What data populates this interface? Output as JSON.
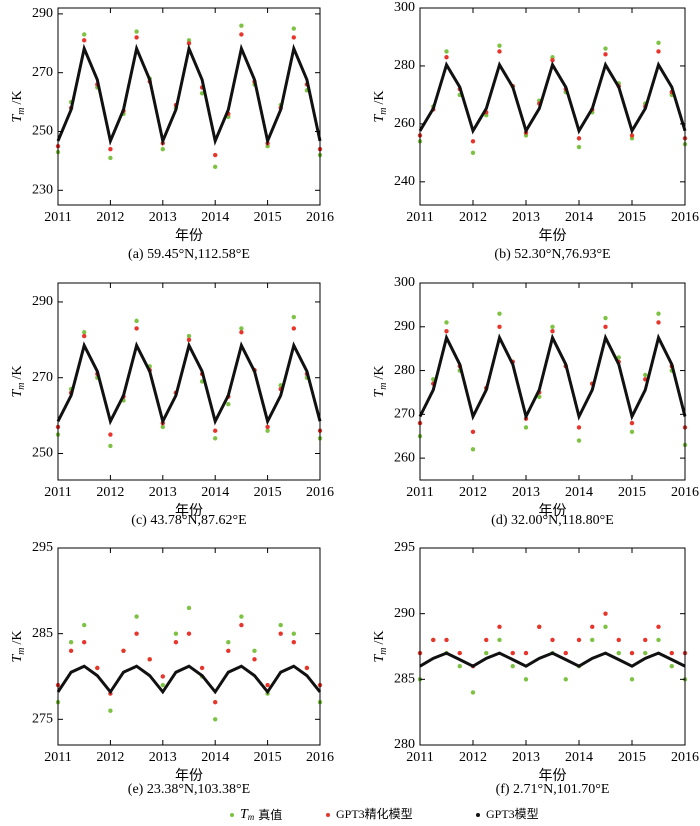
{
  "chart_data": [
    {
      "type": "scatter",
      "caption": "(a) 59.45°N,112.58°E",
      "x_label": "年份",
      "y_label_symbol": "T",
      "y_label_sub": "m",
      "y_label_unit": "/K",
      "x": [
        2011,
        2011.25,
        2011.5,
        2011.75,
        2012,
        2012.25,
        2012.5,
        2012.75,
        2013,
        2013.25,
        2013.5,
        2013.75,
        2014,
        2014.25,
        2014.5,
        2014.75,
        2015,
        2015.25,
        2015.5,
        2015.75,
        2016
      ],
      "xlim": [
        2011,
        2016
      ],
      "xticks": [
        2011,
        2012,
        2013,
        2014,
        2015,
        2016
      ],
      "ylim": [
        225,
        292
      ],
      "yticks": [
        230,
        250,
        270,
        290
      ],
      "series": [
        {
          "name": "真值",
          "name_symbol": "T",
          "name_sub": "m",
          "color": "#7dc242",
          "mode": "markers",
          "values": [
            243,
            260,
            283,
            265,
            241,
            256,
            284,
            268,
            244,
            258,
            281,
            263,
            238,
            255,
            286,
            266,
            245,
            259,
            285,
            264,
            242
          ]
        },
        {
          "name": "GPT3精化模型",
          "color": "#e8352b",
          "mode": "markers",
          "values": [
            245,
            258,
            281,
            266,
            244,
            257,
            282,
            267,
            246,
            259,
            280,
            265,
            242,
            256,
            283,
            267,
            246,
            258,
            282,
            266,
            244
          ]
        },
        {
          "name": "GPT3模型",
          "color": "#111111",
          "mode": "line",
          "values": [
            246.8,
            257.4,
            278.2,
            267.6,
            246.8,
            257.4,
            278.2,
            267.6,
            246.8,
            257.4,
            278.2,
            267.6,
            246.8,
            257.4,
            278.2,
            267.6,
            246.8,
            257.4,
            278.2,
            267.6,
            246.8
          ]
        }
      ]
    },
    {
      "type": "scatter",
      "caption": "(b) 52.30°N,76.93°E",
      "x_label": "年份",
      "y_label_symbol": "T",
      "y_label_sub": "m",
      "y_label_unit": "/K",
      "x": [
        2011,
        2011.25,
        2011.5,
        2011.75,
        2012,
        2012.25,
        2012.5,
        2012.75,
        2013,
        2013.25,
        2013.5,
        2013.75,
        2014,
        2014.25,
        2014.5,
        2014.75,
        2015,
        2015.25,
        2015.5,
        2015.75,
        2016
      ],
      "xlim": [
        2011,
        2016
      ],
      "xticks": [
        2011,
        2012,
        2013,
        2014,
        2015,
        2016
      ],
      "ylim": [
        232,
        300
      ],
      "yticks": [
        240,
        260,
        280,
        300
      ],
      "series": [
        {
          "name": "真值",
          "name_symbol": "T",
          "name_sub": "m",
          "color": "#7dc242",
          "mode": "markers",
          "values": [
            254,
            266,
            285,
            270,
            250,
            263,
            287,
            273,
            256,
            268,
            283,
            271,
            252,
            264,
            286,
            274,
            255,
            267,
            288,
            270,
            253
          ]
        },
        {
          "name": "GPT3精化模型",
          "color": "#e8352b",
          "mode": "markers",
          "values": [
            256,
            265,
            283,
            272,
            254,
            264,
            285,
            273,
            257,
            267,
            282,
            272,
            255,
            265,
            284,
            273,
            256,
            266,
            285,
            271,
            255
          ]
        },
        {
          "name": "GPT3模型",
          "color": "#111111",
          "mode": "line",
          "values": [
            257.6,
            265.3,
            280.4,
            272.7,
            257.6,
            265.3,
            280.4,
            272.7,
            257.6,
            265.3,
            280.4,
            272.7,
            257.6,
            265.3,
            280.4,
            272.7,
            257.6,
            265.3,
            280.4,
            272.7,
            257.6
          ]
        }
      ]
    },
    {
      "type": "scatter",
      "caption": "(c) 43.78°N,87.62°E",
      "x_label": "年份",
      "y_label_symbol": "T",
      "y_label_sub": "m",
      "y_label_unit": "/K",
      "x": [
        2011,
        2011.25,
        2011.5,
        2011.75,
        2012,
        2012.25,
        2012.5,
        2012.75,
        2013,
        2013.25,
        2013.5,
        2013.75,
        2014,
        2014.25,
        2014.5,
        2014.75,
        2015,
        2015.25,
        2015.5,
        2015.75,
        2016
      ],
      "xlim": [
        2011,
        2016
      ],
      "xticks": [
        2011,
        2012,
        2013,
        2014,
        2015,
        2016
      ],
      "ylim": [
        243,
        295
      ],
      "yticks": [
        250,
        270,
        290
      ],
      "series": [
        {
          "name": "真值",
          "name_symbol": "T",
          "name_sub": "m",
          "color": "#7dc242",
          "mode": "markers",
          "values": [
            255,
            267,
            282,
            270,
            252,
            264,
            285,
            273,
            257,
            266,
            281,
            269,
            254,
            263,
            283,
            272,
            256,
            268,
            286,
            270,
            254
          ]
        },
        {
          "name": "GPT3精化模型",
          "color": "#e8352b",
          "mode": "markers",
          "values": [
            257,
            266,
            281,
            271,
            255,
            265,
            283,
            272,
            258,
            266,
            280,
            271,
            256,
            265,
            282,
            272,
            257,
            267,
            283,
            271,
            256
          ]
        },
        {
          "name": "GPT3模型",
          "color": "#111111",
          "mode": "line",
          "values": [
            258.5,
            265.3,
            278.5,
            271.7,
            258.5,
            265.3,
            278.5,
            271.7,
            258.5,
            265.3,
            278.5,
            271.7,
            258.5,
            265.3,
            278.5,
            271.7,
            258.5,
            265.3,
            278.5,
            271.7,
            258.5
          ]
        }
      ]
    },
    {
      "type": "scatter",
      "caption": "(d) 32.00°N,118.80°E",
      "x_label": "年份",
      "y_label_symbol": "T",
      "y_label_sub": "m",
      "y_label_unit": "/K",
      "x": [
        2011,
        2011.25,
        2011.5,
        2011.75,
        2012,
        2012.25,
        2012.5,
        2012.75,
        2013,
        2013.25,
        2013.5,
        2013.75,
        2014,
        2014.25,
        2014.5,
        2014.75,
        2015,
        2015.25,
        2015.5,
        2015.75,
        2016
      ],
      "xlim": [
        2011,
        2016
      ],
      "xticks": [
        2011,
        2012,
        2013,
        2014,
        2015,
        2016
      ],
      "ylim": [
        255,
        300
      ],
      "yticks": [
        260,
        270,
        280,
        290,
        300
      ],
      "series": [
        {
          "name": "真值",
          "name_symbol": "T",
          "name_sub": "m",
          "color": "#7dc242",
          "mode": "markers",
          "values": [
            265,
            278,
            291,
            280,
            262,
            276,
            293,
            282,
            267,
            274,
            290,
            281,
            264,
            277,
            292,
            283,
            266,
            279,
            293,
            280,
            263
          ]
        },
        {
          "name": "GPT3精化模型",
          "color": "#e8352b",
          "mode": "markers",
          "values": [
            268,
            277,
            289,
            281,
            266,
            276,
            290,
            282,
            269,
            275,
            289,
            281,
            267,
            277,
            290,
            282,
            268,
            278,
            291,
            281,
            267
          ]
        },
        {
          "name": "GPT3模型",
          "color": "#111111",
          "mode": "line",
          "values": [
            269.5,
            275.6,
            287.5,
            281.4,
            269.5,
            275.6,
            287.5,
            281.4,
            269.5,
            275.6,
            287.5,
            281.4,
            269.5,
            275.6,
            287.5,
            281.4,
            269.5,
            275.6,
            287.5,
            281.4,
            269.5
          ]
        }
      ]
    },
    {
      "type": "scatter",
      "caption": "(e) 23.38°N,103.38°E",
      "x_label": "年份",
      "y_label_symbol": "T",
      "y_label_sub": "m",
      "y_label_unit": "/K",
      "x": [
        2011,
        2011.25,
        2011.5,
        2011.75,
        2012,
        2012.25,
        2012.5,
        2012.75,
        2013,
        2013.25,
        2013.5,
        2013.75,
        2014,
        2014.25,
        2014.5,
        2014.75,
        2015,
        2015.25,
        2015.5,
        2015.75,
        2016
      ],
      "xlim": [
        2011,
        2016
      ],
      "xticks": [
        2011,
        2012,
        2013,
        2014,
        2015,
        2016
      ],
      "ylim": [
        272,
        295
      ],
      "yticks": [
        275,
        285,
        295
      ],
      "series": [
        {
          "name": "真值",
          "name_symbol": "T",
          "name_sub": "m",
          "color": "#7dc242",
          "mode": "markers",
          "values": [
            277,
            284,
            286,
            281,
            276,
            283,
            287,
            282,
            279,
            285,
            288,
            280,
            275,
            284,
            287,
            283,
            278,
            286,
            285,
            281,
            277
          ]
        },
        {
          "name": "GPT3精化模型",
          "color": "#e8352b",
          "mode": "markers",
          "values": [
            279,
            283,
            284,
            281,
            278,
            283,
            285,
            282,
            280,
            284,
            285,
            281,
            277,
            283,
            286,
            282,
            279,
            285,
            284,
            281,
            279
          ]
        },
        {
          "name": "GPT3模型",
          "color": "#111111",
          "mode": "line",
          "values": [
            278.2,
            280.5,
            281.2,
            280.1,
            278.2,
            280.5,
            281.2,
            280.1,
            278.2,
            280.5,
            281.2,
            280.1,
            278.2,
            280.5,
            281.2,
            280.1,
            278.2,
            280.5,
            281.2,
            280.1,
            278.2
          ]
        }
      ]
    },
    {
      "type": "scatter",
      "caption": "(f) 2.71°N,101.70°E",
      "x_label": "年份",
      "y_label_symbol": "T",
      "y_label_sub": "m",
      "y_label_unit": "/K",
      "x": [
        2011,
        2011.25,
        2011.5,
        2011.75,
        2012,
        2012.25,
        2012.5,
        2012.75,
        2013,
        2013.25,
        2013.5,
        2013.75,
        2014,
        2014.25,
        2014.5,
        2014.75,
        2015,
        2015.25,
        2015.5,
        2015.75,
        2016
      ],
      "xlim": [
        2011,
        2016
      ],
      "xticks": [
        2011,
        2012,
        2013,
        2014,
        2015,
        2016
      ],
      "ylim": [
        280,
        295
      ],
      "yticks": [
        280,
        285,
        290,
        295
      ],
      "series": [
        {
          "name": "真值",
          "name_symbol": "T",
          "name_sub": "m",
          "color": "#7dc242",
          "mode": "markers",
          "values": [
            285,
            288,
            287,
            286,
            284,
            287,
            288,
            286,
            285,
            289,
            287,
            285,
            286,
            288,
            289,
            287,
            285,
            287,
            288,
            286,
            285
          ]
        },
        {
          "name": "GPT3精化模型",
          "color": "#e8352b",
          "mode": "markers",
          "values": [
            287,
            288,
            288,
            287,
            286,
            288,
            289,
            287,
            287,
            289,
            288,
            287,
            288,
            289,
            290,
            288,
            287,
            288,
            289,
            287,
            287
          ]
        },
        {
          "name": "GPT3模型",
          "color": "#111111",
          "mode": "line",
          "values": [
            286,
            286.6,
            287,
            286.5,
            286,
            286.6,
            287,
            286.5,
            286,
            286.6,
            287,
            286.5,
            286,
            286.6,
            287,
            286.5,
            286,
            286.6,
            287,
            286.5,
            286
          ]
        }
      ]
    }
  ]
}
